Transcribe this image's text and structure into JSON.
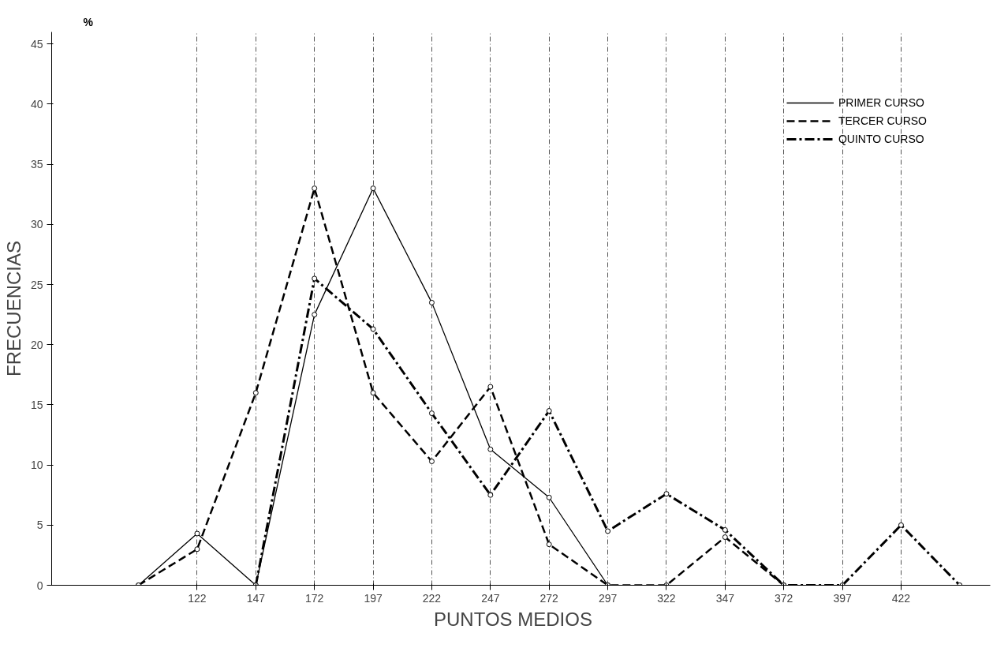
{
  "chart_data": {
    "type": "line",
    "xlabel": "PUNTOS    MEDIOS",
    "ylabel": "FRECUENCIAS",
    "annotations": [
      "%"
    ],
    "x": [
      97,
      122,
      147,
      172,
      197,
      222,
      247,
      272,
      297,
      322,
      347,
      372,
      397,
      422,
      447
    ],
    "series": [
      {
        "name": "PRIMER CURSO",
        "color": "#000000",
        "line_style": "solid",
        "values": [
          0,
          4.3,
          0,
          22.5,
          33,
          23.5,
          11.3,
          7.3,
          0,
          null,
          null,
          null,
          null,
          null,
          null
        ]
      },
      {
        "name": "TERCER CURSO",
        "color": "#000000",
        "line_style": "dashed",
        "values": [
          0,
          3,
          16,
          33,
          16,
          10.3,
          16.5,
          3.4,
          0,
          0,
          4,
          0,
          null,
          null,
          null
        ]
      },
      {
        "name": "QUINTO CURSO",
        "color": "#000000",
        "line_style": "dashdot",
        "values": [
          null,
          null,
          0,
          25.5,
          21.3,
          14.3,
          7.5,
          14.5,
          4.5,
          7.6,
          4.6,
          0,
          0,
          5,
          0
        ]
      }
    ],
    "xlim": [
      60,
      460
    ],
    "ylim": [
      0,
      46
    ],
    "xticks": [
      122,
      147,
      172,
      197,
      222,
      247,
      272,
      297,
      322,
      347,
      372,
      397,
      422
    ],
    "yticks": [
      0,
      5,
      10,
      15,
      20,
      25,
      30,
      35,
      40,
      45
    ],
    "grid": "x",
    "legend": "top right",
    "marker": "circle"
  }
}
